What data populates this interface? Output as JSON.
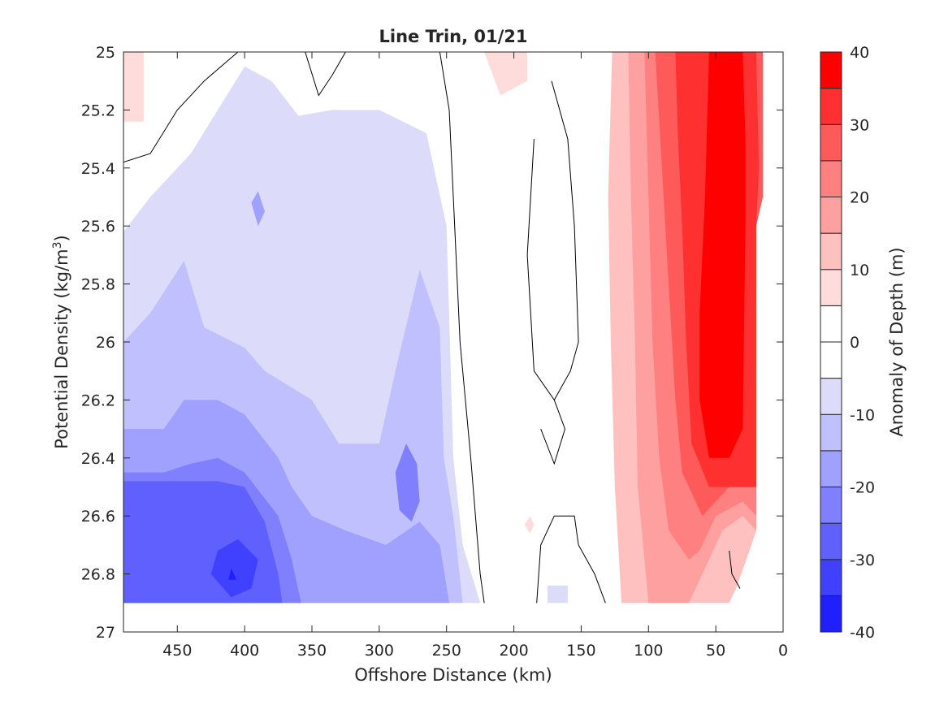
{
  "chart_data": {
    "type": "contour",
    "title": "Line Trin, 01/21",
    "xlabel": "Offshore Distance (km)",
    "ylabel": "Potential Density (kg/m",
    "ylabel_superscript": "3",
    "ylabel_suffix": ")",
    "xlim": [
      490,
      0
    ],
    "x_reversed": true,
    "ylim": [
      25,
      27
    ],
    "y_reversed": true,
    "x_ticks": [
      450,
      400,
      350,
      300,
      250,
      200,
      150,
      100,
      50,
      0
    ],
    "x_tick_labels": [
      "450",
      "400",
      "350",
      "300",
      "250",
      "200",
      "150",
      "100",
      "50",
      "0"
    ],
    "y_ticks": [
      25,
      25.2,
      25.4,
      25.6,
      25.8,
      26,
      26.2,
      26.4,
      26.6,
      26.8,
      27
    ],
    "y_tick_labels": [
      "25",
      "25.2",
      "25.4",
      "25.6",
      "25.8",
      "26",
      "26.2",
      "26.4",
      "26.6",
      "26.8",
      "27"
    ],
    "grid": false,
    "colorbar": {
      "label": "Anomaly of Depth (m)",
      "range": [
        -40,
        40
      ],
      "levels": [
        -40,
        -35,
        -30,
        -25,
        -20,
        -15,
        -10,
        -5,
        0,
        5,
        10,
        15,
        20,
        25,
        30,
        35,
        40
      ],
      "tick_values": [
        40,
        30,
        20,
        10,
        0,
        -10,
        -20,
        -30,
        -40
      ],
      "tick_labels": [
        "40",
        "30",
        "20",
        "10",
        "0",
        "-10",
        "-20",
        "-30",
        "-40"
      ],
      "colors": [
        "#0000ff",
        "#2020ff",
        "#4040ff",
        "#6060ff",
        "#8080ff",
        "#a0a0ff",
        "#c0c0ff",
        "#dcdcfa",
        "#ffffff",
        "#ffffff",
        "#ffdcdc",
        "#ffc0c0",
        "#ffa0a0",
        "#ff8080",
        "#ff5a5a",
        "#ff3030",
        "#ff0000"
      ]
    },
    "contour_regions": [
      {
        "level": 10,
        "color": "#ffdcdc",
        "points": [
          [
            490,
            25.0
          ],
          [
            475,
            25.0
          ],
          [
            475,
            25.24
          ],
          [
            490,
            25.24
          ]
        ]
      },
      {
        "level": 10,
        "color": "#ffdcdc",
        "points": [
          [
            222,
            25.0
          ],
          [
            190,
            25.0
          ],
          [
            190,
            25.1
          ],
          [
            210,
            25.15
          ]
        ]
      },
      {
        "level": 10,
        "color": "#ffdcdc",
        "points": [
          [
            188,
            26.6
          ],
          [
            185,
            26.63
          ],
          [
            188,
            26.66
          ],
          [
            192,
            26.63
          ]
        ]
      },
      {
        "level": -5,
        "color": "#dcdcfa",
        "points": [
          [
            490,
            25.62
          ],
          [
            470,
            25.5
          ],
          [
            440,
            25.35
          ],
          [
            420,
            25.2
          ],
          [
            400,
            25.05
          ],
          [
            380,
            25.1
          ],
          [
            360,
            25.22
          ],
          [
            335,
            25.2
          ],
          [
            300,
            25.2
          ],
          [
            265,
            25.28
          ],
          [
            250,
            25.6
          ],
          [
            245,
            26.4
          ],
          [
            238,
            26.7
          ],
          [
            225,
            26.9
          ],
          [
            490,
            26.9
          ]
        ]
      },
      {
        "level": -5,
        "color": "#dcdcfa",
        "points": [
          [
            175,
            26.84
          ],
          [
            160,
            26.84
          ],
          [
            160,
            26.9
          ],
          [
            175,
            26.9
          ]
        ]
      },
      {
        "level": -10,
        "color": "#c0c0ff",
        "points": [
          [
            490,
            26.0
          ],
          [
            470,
            25.9
          ],
          [
            445,
            25.72
          ],
          [
            430,
            25.95
          ],
          [
            400,
            26.02
          ],
          [
            385,
            26.1
          ],
          [
            350,
            26.2
          ],
          [
            330,
            26.35
          ],
          [
            300,
            26.35
          ],
          [
            288,
            26.1
          ],
          [
            270,
            25.75
          ],
          [
            255,
            25.95
          ],
          [
            252,
            26.4
          ],
          [
            245,
            26.6
          ],
          [
            238,
            26.9
          ],
          [
            490,
            26.9
          ]
        ]
      },
      {
        "level": -15,
        "color": "#a0a0ff",
        "points": [
          [
            490,
            26.3
          ],
          [
            460,
            26.3
          ],
          [
            445,
            26.2
          ],
          [
            420,
            26.2
          ],
          [
            400,
            26.25
          ],
          [
            375,
            26.4
          ],
          [
            365,
            26.5
          ],
          [
            350,
            26.6
          ],
          [
            325,
            26.65
          ],
          [
            295,
            26.7
          ],
          [
            270,
            26.62
          ],
          [
            255,
            26.7
          ],
          [
            248,
            26.9
          ],
          [
            490,
            26.9
          ]
        ]
      },
      {
        "level": -15,
        "color": "#a0a0ff",
        "points": [
          [
            395,
            25.52
          ],
          [
            390,
            25.48
          ],
          [
            385,
            25.55
          ],
          [
            390,
            25.6
          ]
        ]
      },
      {
        "level": -20,
        "color": "#8080ff",
        "points": [
          [
            490,
            26.45
          ],
          [
            460,
            26.45
          ],
          [
            440,
            26.42
          ],
          [
            420,
            26.4
          ],
          [
            400,
            26.45
          ],
          [
            375,
            26.6
          ],
          [
            365,
            26.75
          ],
          [
            358,
            26.9
          ],
          [
            490,
            26.9
          ]
        ]
      },
      {
        "level": -20,
        "color": "#8080ff",
        "points": [
          [
            280,
            26.35
          ],
          [
            272,
            26.42
          ],
          [
            270,
            26.55
          ],
          [
            276,
            26.62
          ],
          [
            285,
            26.58
          ],
          [
            288,
            26.45
          ]
        ]
      },
      {
        "level": -25,
        "color": "#6060ff",
        "points": [
          [
            490,
            26.48
          ],
          [
            450,
            26.48
          ],
          [
            420,
            26.48
          ],
          [
            400,
            26.5
          ],
          [
            385,
            26.62
          ],
          [
            375,
            26.8
          ],
          [
            372,
            26.9
          ],
          [
            490,
            26.9
          ]
        ]
      },
      {
        "level": -30,
        "color": "#4040ff",
        "points": [
          [
            405,
            26.68
          ],
          [
            420,
            26.72
          ],
          [
            425,
            26.8
          ],
          [
            410,
            26.88
          ],
          [
            395,
            26.85
          ],
          [
            390,
            26.75
          ]
        ]
      },
      {
        "level": -35,
        "color": "#2020ff",
        "points": [
          [
            410,
            26.78
          ],
          [
            412,
            26.82
          ],
          [
            406,
            26.82
          ]
        ]
      },
      {
        "level": 15,
        "color": "#ffc0c0",
        "points": [
          [
            127,
            25.0
          ],
          [
            20,
            25.0
          ],
          [
            20,
            26.65
          ],
          [
            25,
            26.72
          ],
          [
            35,
            26.85
          ],
          [
            40,
            26.9
          ],
          [
            120,
            26.9
          ],
          [
            125,
            26.5
          ],
          [
            128,
            26.0
          ],
          [
            130,
            25.5
          ]
        ]
      },
      {
        "level": 20,
        "color": "#ffa0a0",
        "points": [
          [
            115,
            25.0
          ],
          [
            20,
            25.0
          ],
          [
            20,
            26.65
          ],
          [
            30,
            26.6
          ],
          [
            45,
            26.65
          ],
          [
            60,
            26.8
          ],
          [
            70,
            26.9
          ],
          [
            100,
            26.9
          ],
          [
            108,
            26.5
          ],
          [
            110,
            26.0
          ],
          [
            113,
            25.5
          ]
        ]
      },
      {
        "level": 25,
        "color": "#ff8080",
        "points": [
          [
            103,
            25.0
          ],
          [
            20,
            25.0
          ],
          [
            20,
            26.6
          ],
          [
            30,
            26.55
          ],
          [
            50,
            26.6
          ],
          [
            62,
            26.72
          ],
          [
            70,
            26.75
          ],
          [
            85,
            26.65
          ],
          [
            92,
            26.4
          ],
          [
            97,
            26.0
          ],
          [
            100,
            25.5
          ]
        ]
      },
      {
        "level": 30,
        "color": "#ff5a5a",
        "points": [
          [
            95,
            25.0
          ],
          [
            15,
            25.0
          ],
          [
            15,
            25.5
          ],
          [
            20,
            25.6
          ],
          [
            20,
            26.5
          ],
          [
            40,
            26.5
          ],
          [
            60,
            26.6
          ],
          [
            75,
            26.45
          ],
          [
            80,
            26.2
          ],
          [
            85,
            25.8
          ],
          [
            90,
            25.4
          ]
        ]
      },
      {
        "level": 35,
        "color": "#ff3030",
        "points": [
          [
            80,
            25.0
          ],
          [
            20,
            25.0
          ],
          [
            18,
            25.4
          ],
          [
            20,
            25.6
          ],
          [
            20,
            26.5
          ],
          [
            38,
            26.5
          ],
          [
            55,
            26.5
          ],
          [
            68,
            26.35
          ],
          [
            72,
            26.0
          ],
          [
            75,
            25.6
          ],
          [
            78,
            25.3
          ]
        ]
      },
      {
        "level": 40,
        "color": "#ff0000",
        "points": [
          [
            55,
            25.0
          ],
          [
            30,
            25.0
          ],
          [
            28,
            25.3
          ],
          [
            28,
            25.6
          ],
          [
            30,
            26.3
          ],
          [
            40,
            26.4
          ],
          [
            55,
            26.4
          ],
          [
            62,
            26.2
          ],
          [
            62,
            25.9
          ],
          [
            58,
            25.5
          ]
        ]
      }
    ],
    "contour_lines": [
      {
        "level": 0,
        "points": [
          [
            490,
            25.38
          ],
          [
            470,
            25.35
          ],
          [
            450,
            25.2
          ],
          [
            430,
            25.1
          ],
          [
            405,
            25.0
          ]
        ]
      },
      {
        "level": 0,
        "points": [
          [
            355,
            25.0
          ],
          [
            345,
            25.15
          ],
          [
            335,
            25.08
          ],
          [
            325,
            25.0
          ]
        ]
      },
      {
        "level": 0,
        "points": [
          [
            255,
            25.0
          ],
          [
            248,
            25.2
          ],
          [
            244,
            25.6
          ],
          [
            240,
            26.0
          ],
          [
            232,
            26.4
          ],
          [
            225,
            26.8
          ],
          [
            222,
            26.9
          ]
        ]
      },
      {
        "level": 0,
        "points": [
          [
            172,
            25.1
          ],
          [
            160,
            25.3
          ],
          [
            155,
            25.6
          ],
          [
            152,
            26.0
          ],
          [
            158,
            26.1
          ],
          [
            170,
            26.2
          ],
          [
            185,
            26.1
          ],
          [
            190,
            25.7
          ],
          [
            185,
            25.3
          ]
        ]
      },
      {
        "level": 0,
        "points": [
          [
            170,
            26.2
          ],
          [
            162,
            26.3
          ],
          [
            170,
            26.42
          ],
          [
            180,
            26.3
          ]
        ]
      },
      {
        "level": 0,
        "points": [
          [
            183,
            26.9
          ],
          [
            180,
            26.7
          ],
          [
            170,
            26.6
          ],
          [
            155,
            26.6
          ],
          [
            152,
            26.7
          ],
          [
            140,
            26.8
          ],
          [
            132,
            26.9
          ]
        ]
      },
      {
        "level": 0,
        "points": [
          [
            40,
            26.72
          ],
          [
            38,
            26.8
          ],
          [
            32,
            26.85
          ]
        ]
      }
    ]
  }
}
